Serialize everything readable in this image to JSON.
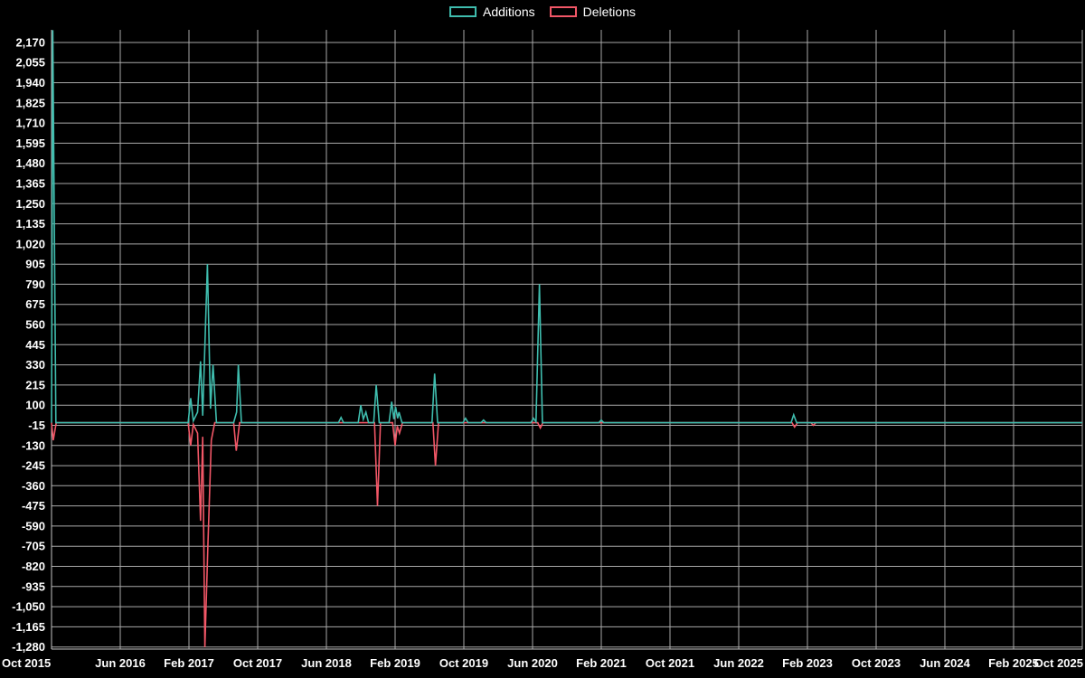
{
  "chart_data": {
    "type": "line",
    "title": "",
    "background": "#000000",
    "grid": true,
    "grid_color": "#a9a9a9",
    "text_color": "#ffffff",
    "legend_position": "top-center",
    "legend": [
      {
        "name": "Additions",
        "color": "#3fbdae"
      },
      {
        "name": "Deletions",
        "color": "#f25767"
      }
    ],
    "xlabel": "",
    "ylabel": "",
    "xlim": [
      0,
      120
    ],
    "ylim": [
      -1292,
      2242
    ],
    "x_ticks": [
      {
        "x": 0,
        "label": "Oct 2015"
      },
      {
        "x": 8,
        "label": "Jun 2016"
      },
      {
        "x": 16,
        "label": "Feb 2017"
      },
      {
        "x": 24,
        "label": "Oct 2017"
      },
      {
        "x": 32,
        "label": "Jun 2018"
      },
      {
        "x": 40,
        "label": "Feb 2019"
      },
      {
        "x": 48,
        "label": "Oct 2019"
      },
      {
        "x": 56,
        "label": "Jun 2020"
      },
      {
        "x": 64,
        "label": "Feb 2021"
      },
      {
        "x": 72,
        "label": "Oct 2021"
      },
      {
        "x": 80,
        "label": "Jun 2022"
      },
      {
        "x": 88,
        "label": "Feb 2023"
      },
      {
        "x": 96,
        "label": "Oct 2023"
      },
      {
        "x": 104,
        "label": "Jun 2024"
      },
      {
        "x": 112,
        "label": "Feb 2025"
      },
      {
        "x": 120,
        "label": "Oct 2025"
      }
    ],
    "y_ticks": [
      -1280,
      -1165,
      -1050,
      -935,
      -820,
      -705,
      -590,
      -475,
      -360,
      -245,
      -130,
      -15,
      100,
      215,
      330,
      445,
      560,
      675,
      790,
      905,
      1020,
      1135,
      1250,
      1365,
      1480,
      1595,
      1710,
      1825,
      1940,
      2055,
      2170
    ],
    "series": [
      {
        "name": "Additions",
        "color": "#3fbdae",
        "points": [
          [
            0,
            0
          ],
          [
            0.15,
            2240
          ],
          [
            0.5,
            0
          ],
          [
            15.9,
            0
          ],
          [
            16.2,
            140
          ],
          [
            16.5,
            10
          ],
          [
            17.0,
            60
          ],
          [
            17.35,
            350
          ],
          [
            17.6,
            40
          ],
          [
            18.15,
            905
          ],
          [
            18.5,
            80
          ],
          [
            18.8,
            330
          ],
          [
            19.2,
            0
          ],
          [
            21.2,
            0
          ],
          [
            21.55,
            60
          ],
          [
            21.75,
            330
          ],
          [
            22.1,
            0
          ],
          [
            33.4,
            0
          ],
          [
            33.7,
            30
          ],
          [
            34.0,
            0
          ],
          [
            35.7,
            0
          ],
          [
            36.0,
            100
          ],
          [
            36.3,
            20
          ],
          [
            36.6,
            60
          ],
          [
            36.9,
            0
          ],
          [
            37.5,
            0
          ],
          [
            37.8,
            215
          ],
          [
            38.15,
            0
          ],
          [
            39.3,
            0
          ],
          [
            39.6,
            120
          ],
          [
            39.85,
            20
          ],
          [
            40.05,
            90
          ],
          [
            40.3,
            25
          ],
          [
            40.45,
            60
          ],
          [
            40.8,
            0
          ],
          [
            44.3,
            0
          ],
          [
            44.6,
            280
          ],
          [
            44.95,
            0
          ],
          [
            47.9,
            0
          ],
          [
            48.2,
            25
          ],
          [
            48.5,
            0
          ],
          [
            50.0,
            0
          ],
          [
            50.3,
            15
          ],
          [
            50.6,
            0
          ],
          [
            55.8,
            0
          ],
          [
            56.1,
            25
          ],
          [
            56.4,
            5
          ],
          [
            56.8,
            790
          ],
          [
            57.15,
            0
          ],
          [
            63.7,
            0
          ],
          [
            64.0,
            15
          ],
          [
            64.3,
            0
          ],
          [
            86.1,
            0
          ],
          [
            86.4,
            45
          ],
          [
            86.75,
            0
          ],
          [
            120,
            0
          ]
        ]
      },
      {
        "name": "Deletions",
        "color": "#f25767",
        "points": [
          [
            0,
            0
          ],
          [
            0.2,
            -100
          ],
          [
            0.55,
            0
          ],
          [
            15.9,
            0
          ],
          [
            16.2,
            -130
          ],
          [
            16.5,
            -10
          ],
          [
            17.0,
            -60
          ],
          [
            17.35,
            -560
          ],
          [
            17.6,
            -80
          ],
          [
            17.85,
            -1280
          ],
          [
            18.2,
            -705
          ],
          [
            18.6,
            -100
          ],
          [
            19.0,
            0
          ],
          [
            21.2,
            0
          ],
          [
            21.5,
            -160
          ],
          [
            21.9,
            0
          ],
          [
            37.6,
            0
          ],
          [
            37.95,
            -475
          ],
          [
            38.3,
            0
          ],
          [
            39.7,
            0
          ],
          [
            40.0,
            -130
          ],
          [
            40.25,
            -20
          ],
          [
            40.5,
            -60
          ],
          [
            40.85,
            0
          ],
          [
            44.4,
            0
          ],
          [
            44.7,
            -245
          ],
          [
            45.05,
            0
          ],
          [
            56.6,
            0
          ],
          [
            56.9,
            -30
          ],
          [
            57.2,
            0
          ],
          [
            86.2,
            0
          ],
          [
            86.5,
            -25
          ],
          [
            86.85,
            0
          ],
          [
            88.4,
            0
          ],
          [
            88.7,
            -15
          ],
          [
            89.0,
            0
          ],
          [
            120,
            0
          ]
        ]
      }
    ]
  }
}
